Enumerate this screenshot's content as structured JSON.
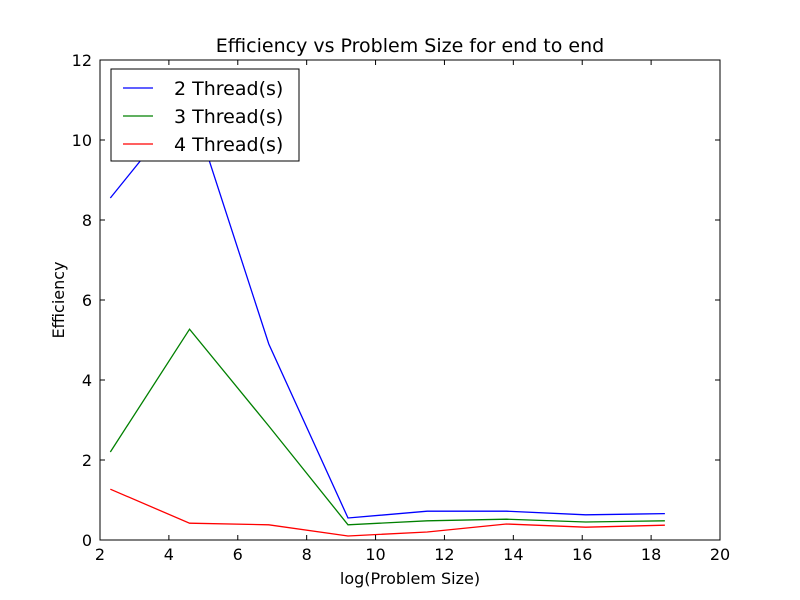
{
  "chart_data": {
    "type": "line",
    "title": "Efficiency vs Problem Size for end to end",
    "xlabel": "log(Problem Size)",
    "ylabel": "Efficiency",
    "xlim": [
      2,
      20
    ],
    "ylim": [
      0,
      12
    ],
    "xticks": [
      "2",
      "4",
      "6",
      "8",
      "10",
      "12",
      "14",
      "16",
      "18",
      "20"
    ],
    "yticks": [
      "0",
      "2",
      "4",
      "6",
      "8",
      "10",
      "12"
    ],
    "grid": false,
    "legend_position": "top-left",
    "x": [
      2.3,
      4.6,
      6.9,
      9.2,
      11.5,
      13.8,
      16.1,
      18.4
    ],
    "series": [
      {
        "name": "2 Thread(s)",
        "color": "#0000ff",
        "values": [
          8.55,
          11.0,
          4.9,
          0.55,
          0.72,
          0.72,
          0.63,
          0.66
        ]
      },
      {
        "name": "3 Thread(s)",
        "color": "#008000",
        "values": [
          2.2,
          5.27,
          2.85,
          0.38,
          0.48,
          0.52,
          0.45,
          0.48
        ]
      },
      {
        "name": "4 Thread(s)",
        "color": "#ff0000",
        "values": [
          1.27,
          0.42,
          0.38,
          0.1,
          0.2,
          0.4,
          0.32,
          0.37
        ]
      }
    ]
  }
}
